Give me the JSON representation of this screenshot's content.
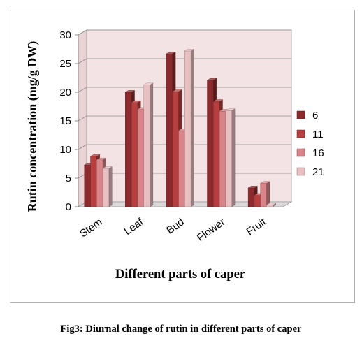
{
  "caption": "Fig3: Diurnal change of rutin in different parts of caper",
  "chart_data": {
    "type": "bar",
    "categories": [
      "Stem",
      "Leaf",
      "Bud",
      "Flower",
      "Fruit"
    ],
    "series": [
      {
        "name": "6",
        "values": [
          7.3,
          20.0,
          26.7,
          22.1,
          3.3
        ],
        "color": "#8c2b2e"
      },
      {
        "name": "11",
        "values": [
          8.8,
          18.2,
          20.1,
          18.4,
          2.0
        ],
        "color": "#b63f3f"
      },
      {
        "name": "16",
        "values": [
          8.2,
          17.0,
          13.3,
          16.7,
          4.1
        ],
        "color": "#d98488"
      },
      {
        "name": "21",
        "values": [
          6.7,
          21.3,
          27.2,
          16.8,
          0.3
        ],
        "color": "#e8c0c2"
      }
    ],
    "title": "",
    "xlabel": "Different parts of caper",
    "ylabel": "Rutin concentration (mg/g DW)",
    "ylim": [
      0,
      30
    ],
    "yticks": [
      0,
      5,
      10,
      15,
      20,
      25,
      30
    ],
    "grid": true,
    "legend": "right",
    "plot_background": "#f4e3e4"
  }
}
